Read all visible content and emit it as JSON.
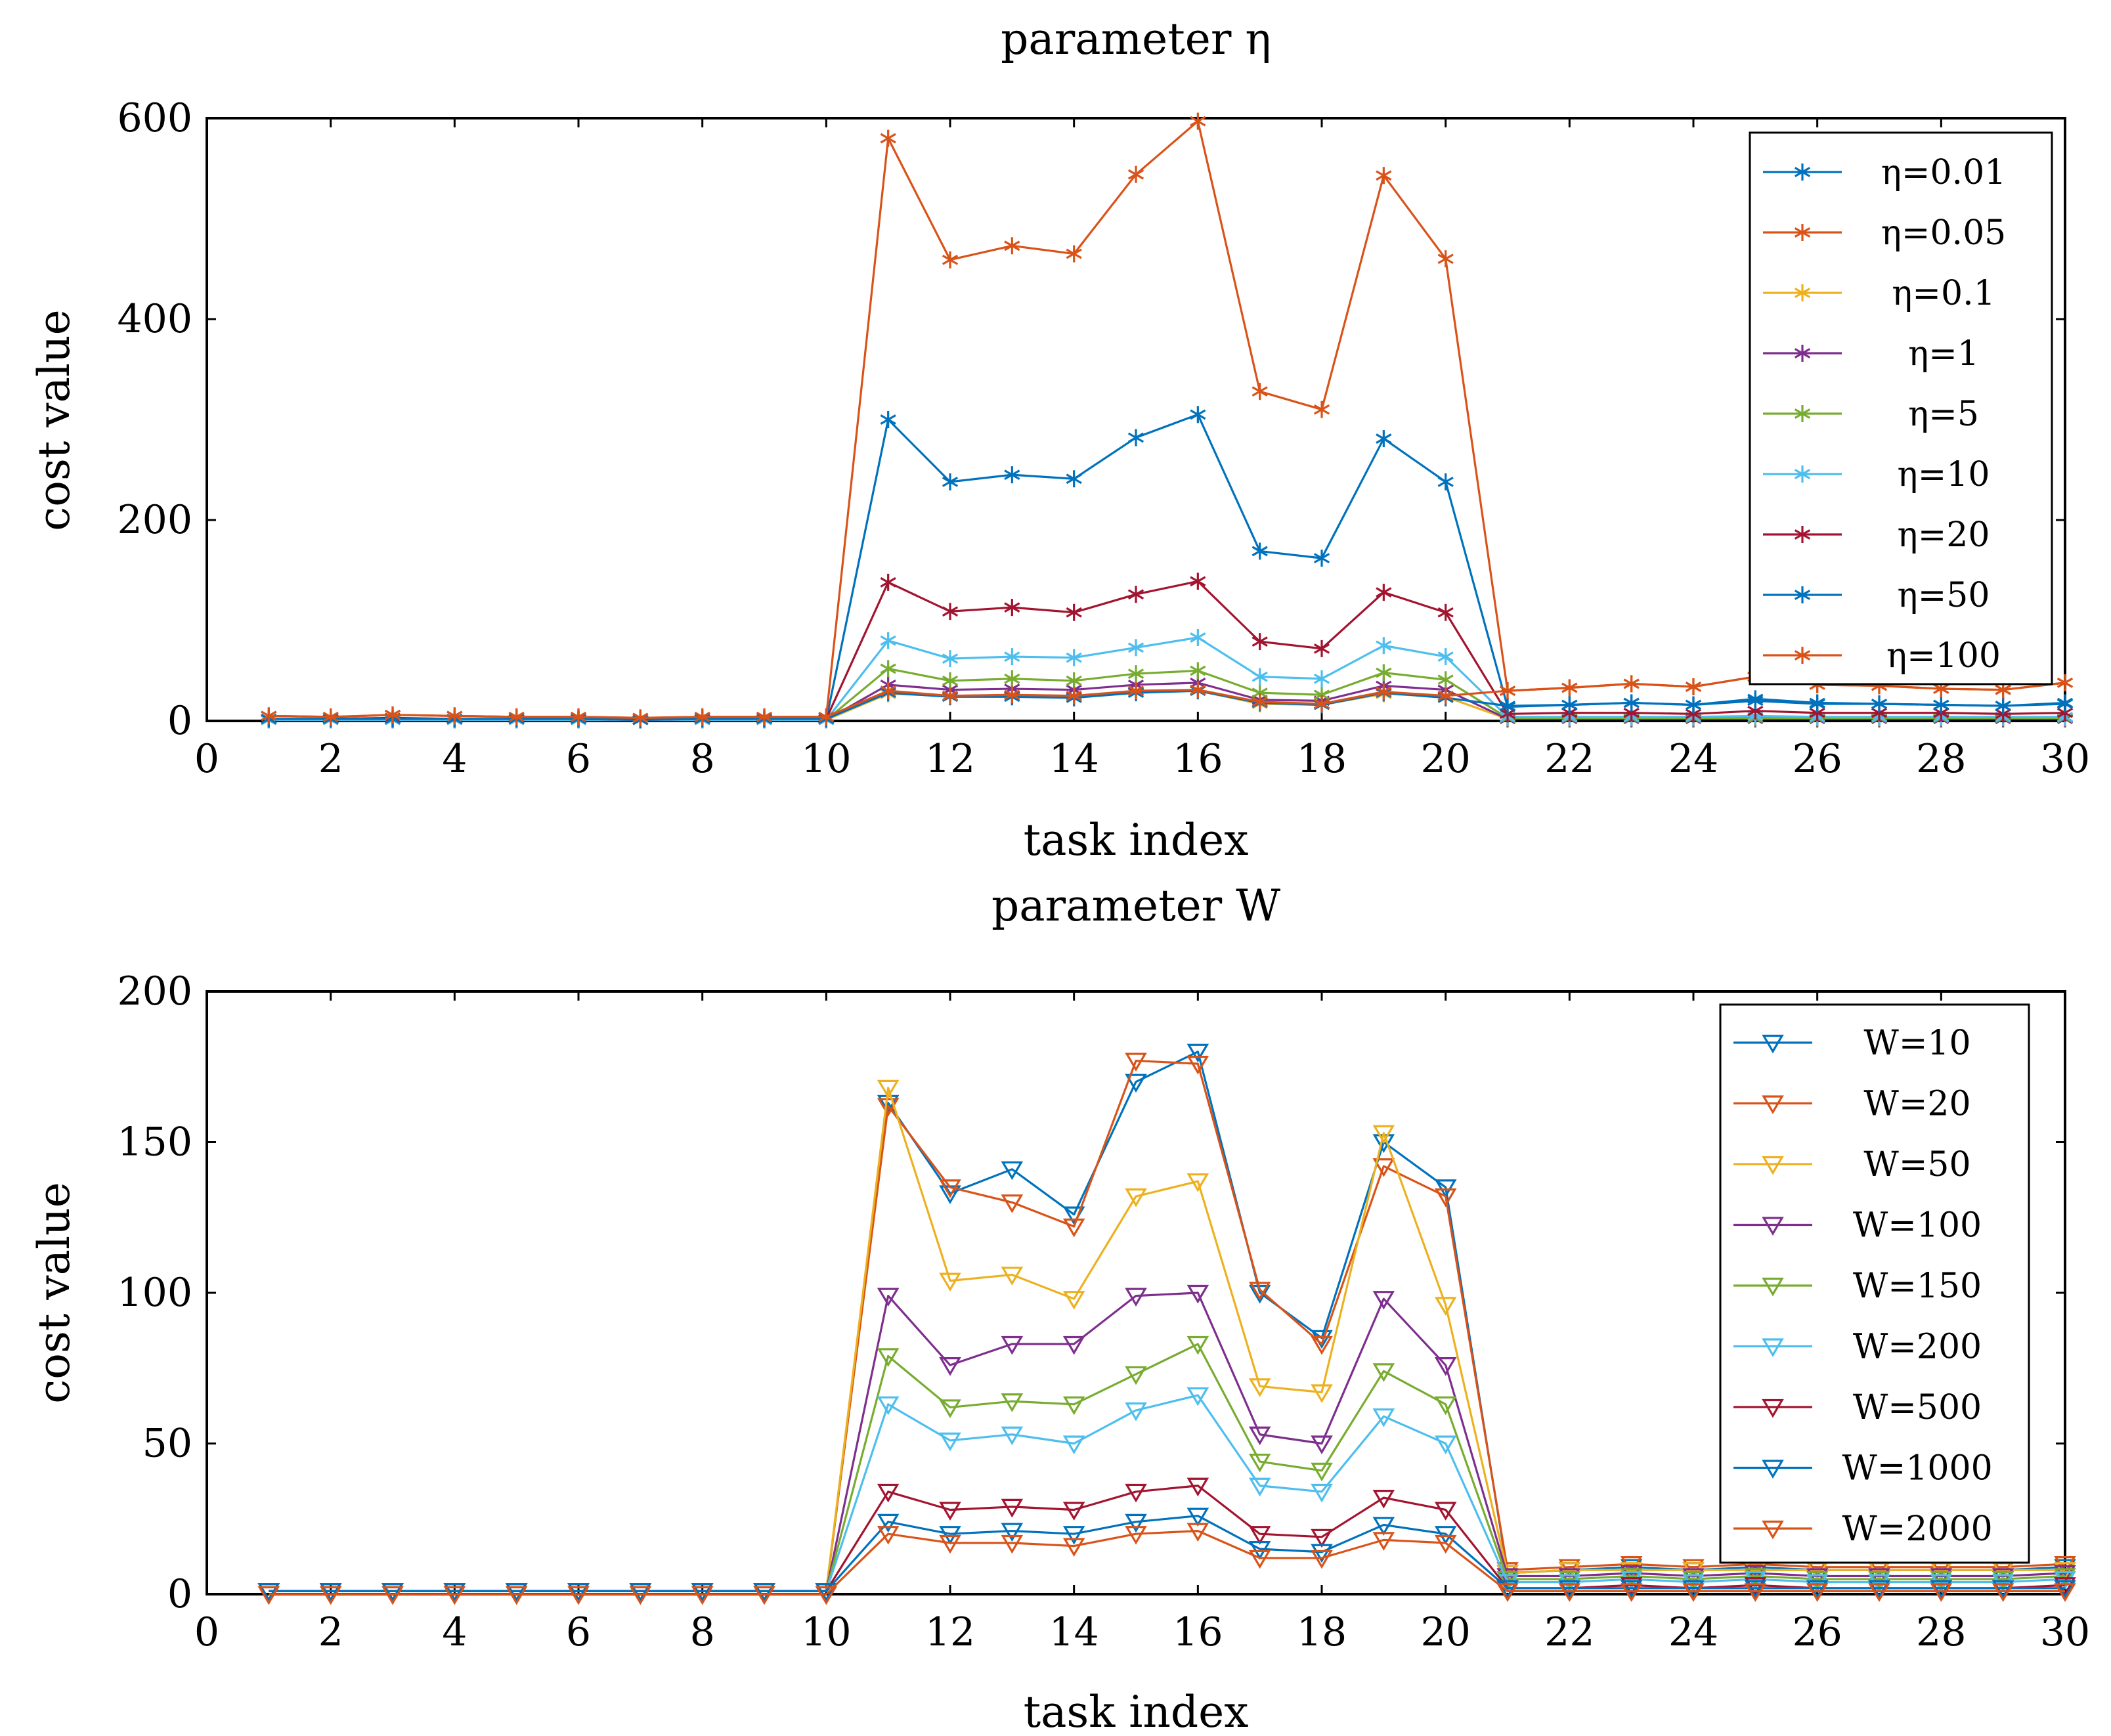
{
  "chart_data": [
    {
      "type": "line",
      "title": "parameter η",
      "xlabel": "task index",
      "ylabel": "cost value",
      "xlim": [
        0,
        30
      ],
      "ylim": [
        0,
        600
      ],
      "xticks": [
        0,
        2,
        4,
        6,
        8,
        10,
        12,
        14,
        16,
        18,
        20,
        22,
        24,
        26,
        28,
        30
      ],
      "yticks": [
        0,
        200,
        400,
        600
      ],
      "marker": "asterisk",
      "legend_position": "top-right",
      "x": [
        1,
        2,
        3,
        4,
        5,
        6,
        7,
        8,
        9,
        10,
        11,
        12,
        13,
        14,
        15,
        16,
        17,
        18,
        19,
        20,
        21,
        22,
        23,
        24,
        25,
        26,
        27,
        28,
        29,
        30
      ],
      "series": [
        {
          "name": "η=0.01",
          "color": "#0072BD",
          "values": [
            1,
            1,
            2,
            2,
            1,
            1,
            1,
            1,
            1,
            1,
            300,
            238,
            245,
            241,
            282,
            305,
            169,
            162,
            281,
            238,
            14,
            16,
            18,
            16,
            22,
            18,
            17,
            16,
            15,
            18
          ]
        },
        {
          "name": "η=0.05",
          "color": "#D95319",
          "values": [
            5,
            4,
            6,
            5,
            4,
            4,
            3,
            4,
            4,
            4,
            580,
            459,
            473,
            465,
            544,
            597,
            328,
            310,
            543,
            460,
            30,
            33,
            37,
            34,
            44,
            36,
            35,
            32,
            31,
            38
          ]
        },
        {
          "name": "η=0.1",
          "color": "#EDB120",
          "values": [
            1,
            1,
            1,
            1,
            1,
            1,
            1,
            1,
            1,
            1,
            27,
            25,
            25,
            24,
            29,
            30,
            17,
            16,
            27,
            24,
            2,
            2,
            2,
            2,
            2,
            2,
            2,
            2,
            2,
            2
          ]
        },
        {
          "name": "η=1",
          "color": "#7E2F8E",
          "values": [
            1,
            1,
            1,
            1,
            1,
            1,
            1,
            1,
            1,
            1,
            36,
            31,
            32,
            31,
            36,
            38,
            21,
            20,
            35,
            31,
            2,
            2,
            2,
            2,
            2,
            2,
            2,
            2,
            2,
            2
          ]
        },
        {
          "name": "η=5",
          "color": "#77AC30",
          "values": [
            1,
            1,
            1,
            1,
            1,
            1,
            1,
            1,
            1,
            1,
            52,
            40,
            42,
            40,
            47,
            50,
            28,
            26,
            48,
            41,
            3,
            3,
            3,
            3,
            3,
            3,
            3,
            3,
            3,
            3
          ]
        },
        {
          "name": "η=10",
          "color": "#4DBEEE",
          "values": [
            1,
            1,
            1,
            1,
            1,
            1,
            1,
            1,
            1,
            1,
            80,
            62,
            64,
            63,
            73,
            83,
            44,
            42,
            75,
            64,
            4,
            4,
            4,
            4,
            5,
            4,
            4,
            4,
            4,
            4
          ]
        },
        {
          "name": "η=20",
          "color": "#A2142F",
          "values": [
            2,
            2,
            3,
            2,
            2,
            2,
            1,
            2,
            2,
            2,
            138,
            109,
            113,
            108,
            126,
            139,
            79,
            72,
            128,
            108,
            7,
            8,
            8,
            7,
            10,
            8,
            8,
            8,
            7,
            8
          ]
        },
        {
          "name": "η=50",
          "color": "#0072BD",
          "values": [
            2,
            2,
            2,
            2,
            2,
            2,
            1,
            2,
            2,
            2,
            28,
            24,
            24,
            23,
            28,
            30,
            18,
            16,
            28,
            23,
            15,
            16,
            18,
            16,
            20,
            17,
            17,
            16,
            15,
            17
          ]
        },
        {
          "name": "η=100",
          "color": "#D95319",
          "values": [
            5,
            4,
            6,
            5,
            4,
            4,
            3,
            4,
            4,
            4,
            30,
            25,
            26,
            25,
            30,
            31,
            19,
            17,
            29,
            25,
            30,
            33,
            37,
            34,
            44,
            36,
            35,
            32,
            31,
            38
          ]
        }
      ]
    },
    {
      "type": "line",
      "title": "parameter W",
      "xlabel": "task index",
      "ylabel": "cost value",
      "xlim": [
        0,
        30
      ],
      "ylim": [
        0,
        200
      ],
      "xticks": [
        0,
        2,
        4,
        6,
        8,
        10,
        12,
        14,
        16,
        18,
        20,
        22,
        24,
        26,
        28,
        30
      ],
      "yticks": [
        0,
        50,
        100,
        150,
        200
      ],
      "marker": "triangle-down",
      "legend_position": "top-right",
      "x": [
        1,
        2,
        3,
        4,
        5,
        6,
        7,
        8,
        9,
        10,
        11,
        12,
        13,
        14,
        15,
        16,
        17,
        18,
        19,
        20,
        21,
        22,
        23,
        24,
        25,
        26,
        27,
        28,
        29,
        30
      ],
      "series": [
        {
          "name": "W=10",
          "color": "#0072BD",
          "values": [
            1,
            1,
            1,
            1,
            1,
            1,
            1,
            1,
            1,
            1,
            163,
            133,
            141,
            126,
            170,
            180,
            100,
            85,
            150,
            135,
            7,
            8,
            9,
            8,
            9,
            8,
            8,
            8,
            8,
            9
          ]
        },
        {
          "name": "W=20",
          "color": "#D95319",
          "values": [
            1,
            1,
            1,
            1,
            1,
            1,
            1,
            1,
            1,
            1,
            162,
            135,
            130,
            122,
            177,
            176,
            101,
            83,
            142,
            132,
            8,
            9,
            10,
            9,
            10,
            9,
            9,
            9,
            9,
            10
          ]
        },
        {
          "name": "W=50",
          "color": "#EDB120",
          "values": [
            1,
            1,
            1,
            1,
            1,
            1,
            1,
            1,
            1,
            1,
            168,
            104,
            106,
            98,
            132,
            137,
            69,
            67,
            153,
            96,
            7,
            8,
            8,
            8,
            8,
            8,
            8,
            8,
            8,
            8
          ]
        },
        {
          "name": "W=100",
          "color": "#7E2F8E",
          "values": [
            1,
            1,
            1,
            1,
            1,
            1,
            1,
            1,
            1,
            1,
            99,
            76,
            83,
            83,
            99,
            100,
            53,
            50,
            98,
            76,
            6,
            6,
            7,
            6,
            7,
            6,
            6,
            6,
            6,
            7
          ]
        },
        {
          "name": "W=150",
          "color": "#77AC30",
          "values": [
            1,
            1,
            1,
            1,
            1,
            1,
            1,
            1,
            1,
            1,
            79,
            62,
            64,
            63,
            73,
            83,
            44,
            41,
            74,
            63,
            5,
            5,
            6,
            5,
            6,
            5,
            5,
            5,
            5,
            6
          ]
        },
        {
          "name": "W=200",
          "color": "#4DBEEE",
          "values": [
            1,
            1,
            1,
            1,
            1,
            1,
            1,
            1,
            1,
            1,
            63,
            51,
            53,
            50,
            61,
            66,
            36,
            34,
            59,
            50,
            4,
            4,
            5,
            4,
            5,
            4,
            4,
            4,
            4,
            5
          ]
        },
        {
          "name": "W=500",
          "color": "#A2142F",
          "values": [
            1,
            1,
            1,
            1,
            1,
            1,
            1,
            1,
            1,
            1,
            34,
            28,
            29,
            28,
            34,
            36,
            20,
            19,
            32,
            28,
            2,
            2,
            3,
            2,
            3,
            2,
            2,
            2,
            2,
            3
          ]
        },
        {
          "name": "W=1000",
          "color": "#0072BD",
          "values": [
            1,
            1,
            1,
            1,
            1,
            1,
            1,
            1,
            1,
            1,
            24,
            20,
            21,
            20,
            24,
            26,
            15,
            14,
            23,
            20,
            2,
            2,
            2,
            2,
            2,
            2,
            2,
            2,
            2,
            2
          ]
        },
        {
          "name": "W=2000",
          "color": "#D95319",
          "values": [
            0,
            0,
            0,
            0,
            0,
            0,
            0,
            0,
            0,
            0,
            20,
            17,
            17,
            16,
            20,
            21,
            12,
            12,
            18,
            17,
            1,
            1,
            1,
            1,
            1,
            1,
            1,
            1,
            1,
            1
          ]
        }
      ]
    }
  ]
}
